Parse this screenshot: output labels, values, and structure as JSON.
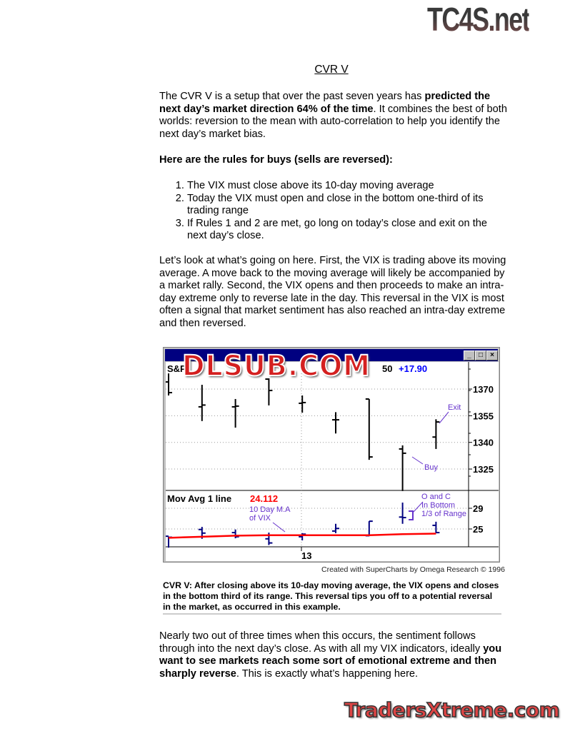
{
  "watermarks": {
    "top_logo": "TC4S.net",
    "chart_logo": "DLSUB.COM",
    "bottom_logo": "TradersXtreme.com"
  },
  "title": "CVR V",
  "intro": {
    "p1": "The CVR V is a setup that over the past seven years has ",
    "p1_bold": "predicted the next day’s market direction 64% of the time",
    "p1_end": ". It combines the best of both worlds: reversion to the mean with auto-correlation to help you identify the next day’s market bias."
  },
  "rules_heading": "Here are the rules for buys (sells are reversed):",
  "rules": [
    "The VIX must close above its 10-day moving average",
    "Today the VIX must open and close in the bottom one-third of its trading range",
    "If Rules 1 and 2 are met, go long on today’s close and exit on the next day’s close."
  ],
  "para2": "Let’s look at what’s going on here. First, the VIX is trading above its moving average. A move back to the moving average will likely be accompanied by a market rally. Second, the VIX opens and then proceeds to make an intra-day extreme only to reverse late in the day. This reversal in the VIX is most often a signal that market sentiment has also reached an intra-day extreme and then reversed.",
  "chart_data": {
    "type": "ohlc",
    "window_buttons": [
      "_",
      "□",
      "×"
    ],
    "price_panel": {
      "label": "S&P",
      "last": "50",
      "change": "+17.90",
      "yticks": [
        1370,
        1355,
        1340,
        1325
      ],
      "ylim": [
        1310,
        1385
      ],
      "bars": [
        {
          "o": 1374,
          "h": 1378.8,
          "l": 1366.4,
          "c": 1368
        },
        {
          "o": 1360,
          "h": 1372.4,
          "l": 1352,
          "c": 1361
        },
        {
          "o": 1360,
          "h": 1364.4,
          "l": 1348.3,
          "c": 1360.4
        },
        {
          "o": 1375.6,
          "h": 1376,
          "l": 1360.8,
          "c": 1369.2
        },
        {
          "o": 1362,
          "h": 1366.4,
          "l": 1356.7,
          "c": 1362.4
        },
        {
          "o": 1352.7,
          "h": 1357,
          "l": 1345,
          "c": 1352.7
        },
        {
          "o": 1364.4,
          "h": 1364.4,
          "l": 1330.2,
          "c": 1331.8
        },
        {
          "o": 1336.3,
          "h": 1338.3,
          "l": 1312.6,
          "c": 1333.9
        },
        {
          "o": 1343,
          "h": 1353,
          "l": 1336.3,
          "c": 1351.5
        }
      ],
      "annotations": {
        "exit": "Exit",
        "buy": "Buy"
      }
    },
    "vix_panel": {
      "label": "Mov Avg 1 line",
      "value": "24.112",
      "yticks": [
        29,
        25
      ],
      "ylim": [
        20.5,
        32
      ],
      "bars": [
        {
          "o": 23.6,
          "h": 23.5,
          "l": 21.4,
          "c": 23.4
        },
        {
          "o": 24.9,
          "h": 25.4,
          "l": 23.1,
          "c": 24.2
        },
        {
          "o": 24.3,
          "h": 24.9,
          "l": 23.2,
          "c": 23.5
        },
        {
          "o": 23.1,
          "h": 24.3,
          "l": 21.9,
          "c": 22.3
        },
        {
          "o": 23.5,
          "h": 24.2,
          "l": 22.8,
          "c": 24.0
        },
        {
          "o": 24.6,
          "h": 26,
          "l": 24.2,
          "c": 25.1
        },
        {
          "o": 23.7,
          "h": 26.5,
          "l": 23.6,
          "c": 26.5
        },
        {
          "o": 27.3,
          "h": 30.1,
          "l": 26,
          "c": 27.2
        },
        {
          "o": 25.7,
          "h": 26.4,
          "l": 24.2,
          "c": 24.3
        }
      ],
      "moving_average": [
        23.3,
        23.5,
        23.7,
        23.8,
        23.8,
        23.8,
        23.8,
        24.0,
        24.1
      ],
      "annotations": {
        "ma": [
          "10 Day M.A",
          "of VIX"
        ],
        "oc": [
          "O and C",
          "In Bottom",
          "1/3 of Range"
        ]
      }
    },
    "xtick": "13",
    "colors": {
      "price": "#000000",
      "vix": "#000080",
      "ma": "#ff0000",
      "annotation": "#6633cc",
      "change": "#0000ff"
    }
  },
  "credit": "Created with SuperCharts by Omega Research © 1996",
  "caption": "CVR V: After closing above its 10-day moving average, the VIX opens and closes in the bottom third of its range. This reversal tips you off to a potential reversal in the market, as occurred in this example.",
  "para3": {
    "start": "Nearly two out of three times when this occurs, the sentiment follows through into the next day’s close. As with all my VIX indicators, ideally ",
    "bold": "you want to see markets reach some sort of emotional extreme and then sharply reverse",
    "end": ". This is exactly what’s happening here."
  }
}
